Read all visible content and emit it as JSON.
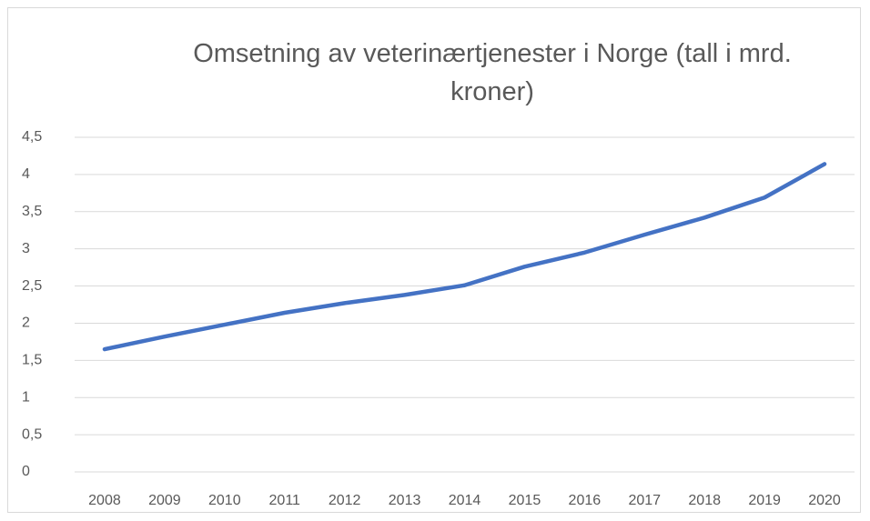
{
  "chart_data": {
    "type": "line",
    "title": "Omsetning av veterinærtjenester i Norge (tall i mrd. kroner)",
    "categories": [
      "2008",
      "2009",
      "2010",
      "2011",
      "2012",
      "2013",
      "2014",
      "2015",
      "2016",
      "2017",
      "2018",
      "2019",
      "2020"
    ],
    "series": [
      {
        "name": "Omsetning",
        "color": "#4472c4",
        "values": [
          1.65,
          1.82,
          1.98,
          2.14,
          2.27,
          2.38,
          2.51,
          2.76,
          2.95,
          3.19,
          3.42,
          3.69,
          4.14
        ]
      }
    ],
    "ylim": [
      0,
      4.5
    ],
    "yticks": [
      0,
      {
        "value": 0.5,
        "label": "0,5"
      },
      1,
      {
        "value": 1.5,
        "label": "1,5"
      },
      2,
      {
        "value": 2.5,
        "label": "2,5"
      },
      3,
      {
        "value": 3.5,
        "label": "3,5"
      },
      4,
      {
        "value": 4.5,
        "label": "4,5"
      }
    ],
    "grid": true
  }
}
